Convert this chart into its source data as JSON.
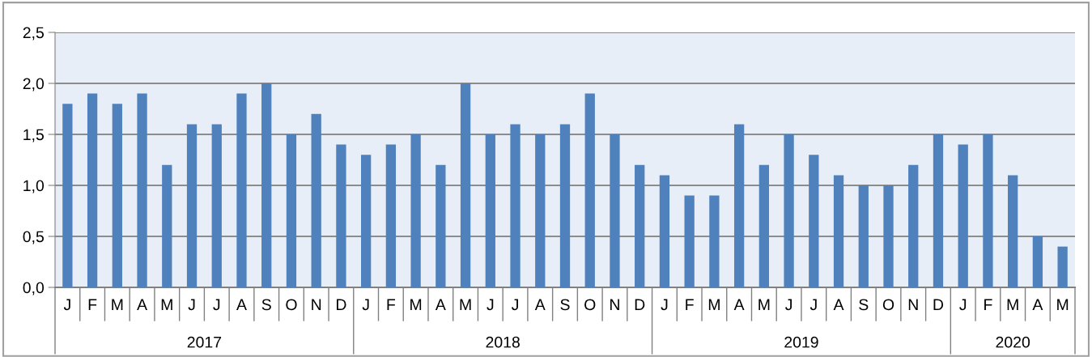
{
  "chart_data": {
    "type": "bar",
    "categories": [
      "J",
      "F",
      "M",
      "A",
      "M",
      "J",
      "J",
      "A",
      "S",
      "O",
      "N",
      "D",
      "J",
      "F",
      "M",
      "A",
      "M",
      "J",
      "J",
      "A",
      "S",
      "O",
      "N",
      "D",
      "J",
      "F",
      "M",
      "A",
      "M",
      "J",
      "J",
      "A",
      "S",
      "O",
      "N",
      "D",
      "J",
      "F",
      "M",
      "A",
      "M"
    ],
    "values": [
      1.8,
      1.9,
      1.8,
      1.9,
      1.2,
      1.6,
      1.6,
      1.9,
      2.0,
      1.5,
      1.7,
      1.4,
      1.3,
      1.4,
      1.5,
      1.2,
      2.0,
      1.5,
      1.6,
      1.5,
      1.6,
      1.9,
      1.5,
      1.2,
      1.1,
      0.9,
      0.9,
      1.6,
      1.2,
      1.5,
      1.3,
      1.1,
      1.0,
      1.0,
      1.2,
      1.5,
      1.4,
      1.5,
      1.1,
      0.5,
      0.4
    ],
    "color": "#4f81bd",
    "ylim": [
      0,
      2.5
    ],
    "yticks": [
      {
        "value": 0,
        "label": "0,0"
      },
      {
        "value": 0.5,
        "label": "0,5"
      },
      {
        "value": 1,
        "label": "1,0"
      },
      {
        "value": 1.5,
        "label": "1,5"
      },
      {
        "value": 2,
        "label": "2,0"
      },
      {
        "value": 2.5,
        "label": "2,5"
      }
    ],
    "grid": "y",
    "legend": false,
    "annotations": [
      "2017",
      "2018",
      "2019",
      "2020"
    ]
  }
}
